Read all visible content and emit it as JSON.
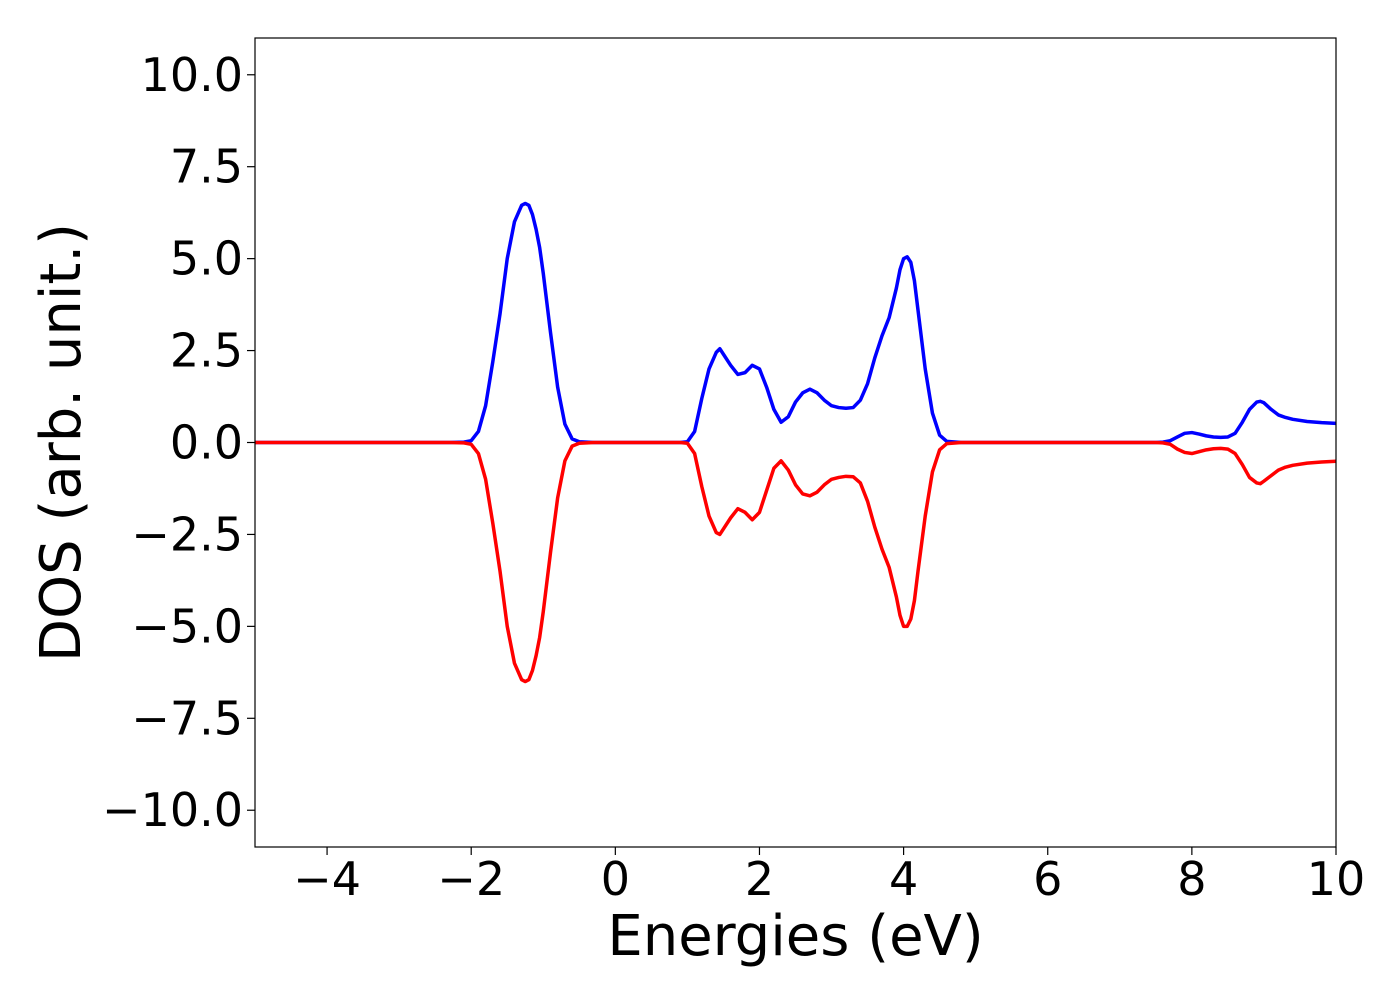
{
  "chart_data": {
    "type": "line",
    "title": "",
    "xlabel": "Energies (eV)",
    "ylabel": "DOS (arb. unit.)",
    "xlim": [
      -5,
      10
    ],
    "ylim": [
      -11,
      11
    ],
    "x_ticks": [
      {
        "value": -4,
        "label": "−4"
      },
      {
        "value": -2,
        "label": "−2"
      },
      {
        "value": 0,
        "label": "0"
      },
      {
        "value": 2,
        "label": "2"
      },
      {
        "value": 4,
        "label": "4"
      },
      {
        "value": 6,
        "label": "6"
      },
      {
        "value": 8,
        "label": "8"
      },
      {
        "value": 10,
        "label": "10"
      }
    ],
    "y_ticks": [
      {
        "value": 10,
        "label": "10.0"
      },
      {
        "value": 7.5,
        "label": "7.5"
      },
      {
        "value": 5,
        "label": "5.0"
      },
      {
        "value": 2.5,
        "label": "2.5"
      },
      {
        "value": 0,
        "label": "0.0"
      },
      {
        "value": -2.5,
        "label": "−2.5"
      },
      {
        "value": -5,
        "label": "−5.0"
      },
      {
        "value": -7.5,
        "label": "−7.5"
      },
      {
        "value": -10,
        "label": "−10.0"
      }
    ],
    "grid": false,
    "legend": "none",
    "series": [
      {
        "color": "#0000ff",
        "x": [
          -5,
          -2.3,
          -2.1,
          -2.0,
          -1.9,
          -1.8,
          -1.7,
          -1.6,
          -1.5,
          -1.4,
          -1.3,
          -1.25,
          -1.2,
          -1.15,
          -1.1,
          -1.05,
          -1.0,
          -0.9,
          -0.8,
          -0.7,
          -0.6,
          -0.5,
          -0.3,
          0,
          0.5,
          0.9,
          1.0,
          1.1,
          1.2,
          1.3,
          1.4,
          1.45,
          1.5,
          1.6,
          1.7,
          1.8,
          1.9,
          2.0,
          2.1,
          2.2,
          2.3,
          2.4,
          2.5,
          2.6,
          2.7,
          2.8,
          2.9,
          3.0,
          3.1,
          3.2,
          3.3,
          3.4,
          3.5,
          3.6,
          3.7,
          3.8,
          3.9,
          3.95,
          4.0,
          4.05,
          4.1,
          4.15,
          4.2,
          4.3,
          4.4,
          4.5,
          4.6,
          4.8,
          5.0,
          6.0,
          7.0,
          7.5,
          7.6,
          7.7,
          7.8,
          7.9,
          8.0,
          8.1,
          8.2,
          8.3,
          8.4,
          8.5,
          8.6,
          8.7,
          8.8,
          8.9,
          8.95,
          9.0,
          9.1,
          9.2,
          9.3,
          9.4,
          9.6,
          9.8,
          10.0
        ],
        "y": [
          0,
          0,
          0.01,
          0.05,
          0.3,
          1.0,
          2.2,
          3.5,
          5.0,
          6.0,
          6.45,
          6.5,
          6.45,
          6.2,
          5.8,
          5.3,
          4.6,
          3.0,
          1.5,
          0.5,
          0.1,
          0.02,
          0,
          0,
          0,
          0,
          0.02,
          0.3,
          1.2,
          2.0,
          2.45,
          2.55,
          2.4,
          2.1,
          1.85,
          1.9,
          2.1,
          2.0,
          1.5,
          0.9,
          0.55,
          0.7,
          1.1,
          1.35,
          1.45,
          1.35,
          1.15,
          1.0,
          0.95,
          0.93,
          0.95,
          1.15,
          1.6,
          2.3,
          2.9,
          3.4,
          4.2,
          4.7,
          5.0,
          5.05,
          4.9,
          4.4,
          3.6,
          2.0,
          0.8,
          0.2,
          0.03,
          0,
          0,
          0,
          0,
          0,
          0.01,
          0.05,
          0.15,
          0.25,
          0.27,
          0.23,
          0.18,
          0.15,
          0.14,
          0.15,
          0.25,
          0.55,
          0.9,
          1.1,
          1.12,
          1.08,
          0.9,
          0.75,
          0.68,
          0.63,
          0.57,
          0.54,
          0.52
        ]
      },
      {
        "color": "#ff0000",
        "x": [
          -5,
          -2.3,
          -2.1,
          -2.0,
          -1.9,
          -1.8,
          -1.7,
          -1.6,
          -1.5,
          -1.4,
          -1.3,
          -1.25,
          -1.2,
          -1.15,
          -1.1,
          -1.05,
          -1.0,
          -0.9,
          -0.8,
          -0.7,
          -0.6,
          -0.5,
          -0.3,
          0,
          0.5,
          0.9,
          1.0,
          1.1,
          1.2,
          1.3,
          1.4,
          1.45,
          1.5,
          1.6,
          1.7,
          1.8,
          1.9,
          2.0,
          2.1,
          2.2,
          2.3,
          2.4,
          2.5,
          2.6,
          2.7,
          2.8,
          2.9,
          3.0,
          3.1,
          3.2,
          3.3,
          3.4,
          3.5,
          3.6,
          3.7,
          3.8,
          3.9,
          3.95,
          4.0,
          4.05,
          4.1,
          4.15,
          4.2,
          4.3,
          4.4,
          4.5,
          4.6,
          4.8,
          5.0,
          6.0,
          7.0,
          7.5,
          7.6,
          7.7,
          7.8,
          7.9,
          8.0,
          8.1,
          8.2,
          8.3,
          8.4,
          8.5,
          8.6,
          8.7,
          8.8,
          8.9,
          8.95,
          9.0,
          9.1,
          9.2,
          9.3,
          9.4,
          9.6,
          9.8,
          10.0
        ],
        "y": [
          0,
          0,
          -0.01,
          -0.05,
          -0.3,
          -1.0,
          -2.2,
          -3.5,
          -5.0,
          -6.0,
          -6.45,
          -6.5,
          -6.45,
          -6.2,
          -5.8,
          -5.3,
          -4.6,
          -3.0,
          -1.5,
          -0.5,
          -0.1,
          -0.02,
          0,
          0,
          0,
          0,
          -0.02,
          -0.3,
          -1.2,
          -2.0,
          -2.45,
          -2.5,
          -2.35,
          -2.05,
          -1.8,
          -1.9,
          -2.1,
          -1.9,
          -1.3,
          -0.7,
          -0.5,
          -0.75,
          -1.15,
          -1.4,
          -1.45,
          -1.35,
          -1.15,
          -1.0,
          -0.95,
          -0.92,
          -0.93,
          -1.1,
          -1.6,
          -2.3,
          -2.9,
          -3.4,
          -4.2,
          -4.7,
          -5.0,
          -5.0,
          -4.8,
          -4.3,
          -3.5,
          -2.0,
          -0.8,
          -0.2,
          -0.03,
          0,
          0,
          0,
          0,
          0,
          -0.01,
          -0.05,
          -0.18,
          -0.27,
          -0.3,
          -0.25,
          -0.2,
          -0.17,
          -0.16,
          -0.18,
          -0.3,
          -0.6,
          -0.95,
          -1.1,
          -1.12,
          -1.05,
          -0.9,
          -0.75,
          -0.67,
          -0.62,
          -0.56,
          -0.53,
          -0.51
        ]
      }
    ]
  }
}
